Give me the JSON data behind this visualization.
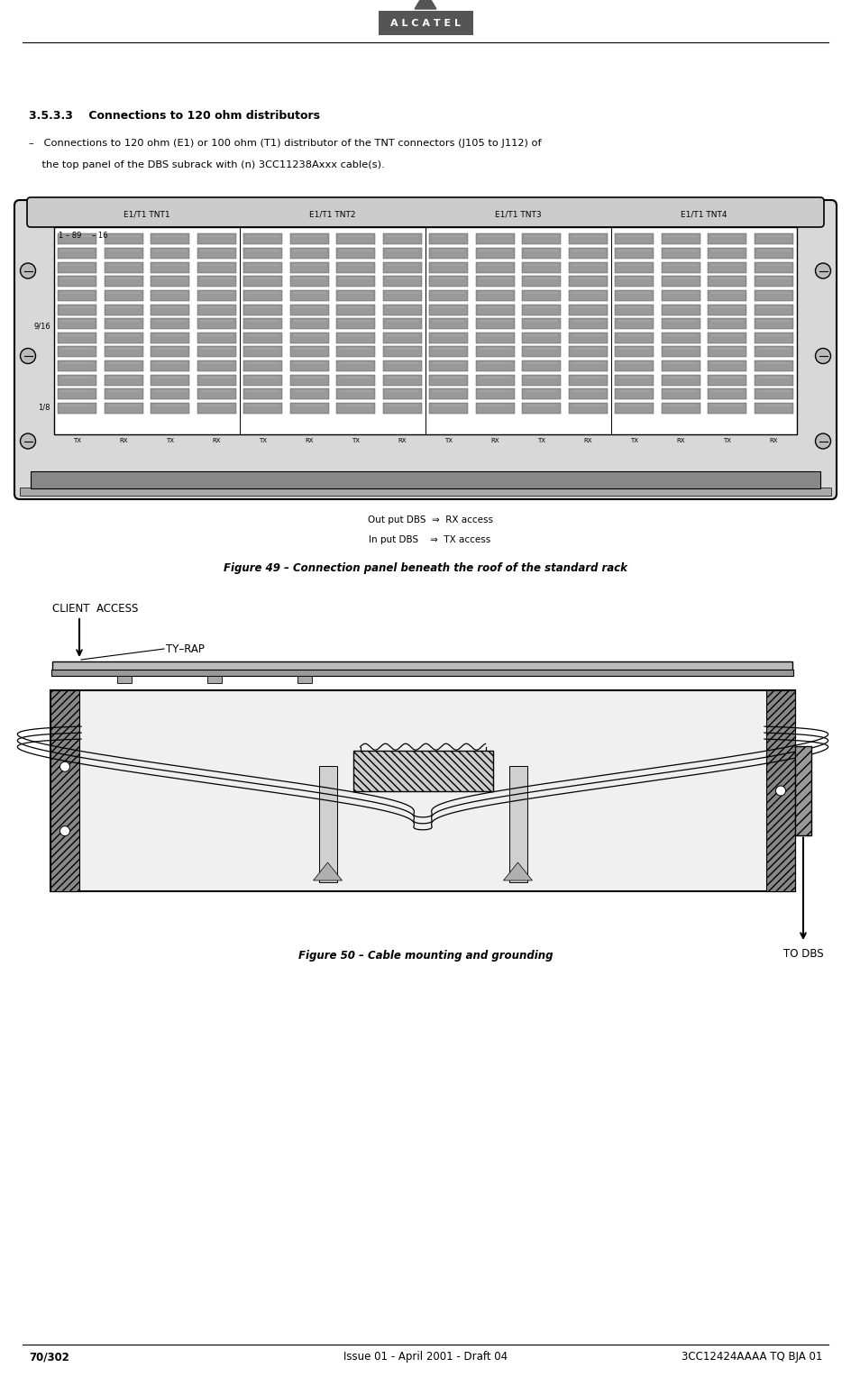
{
  "bg_color": "#ffffff",
  "page_width": 9.44,
  "page_height": 15.28,
  "header": {
    "triangle_color": "#555555",
    "alcatel_bg": "#555555",
    "alcatel_text": "A L C A T E L",
    "alcatel_text_color": "#ffffff"
  },
  "footer": {
    "left": "70/302",
    "center": "Issue 01 - April 2001 - Draft 04",
    "right": "3CC12424AAAA TQ BJA 01"
  },
  "section_title": "3.5.3.3    Connections to 120 ohm distributors",
  "bullet_text_line1": "–   Connections to 120 ohm (E1) or 100 ohm (T1) distributor of the TNT connectors (J105 to J112) of",
  "bullet_text_line2": "    the top panel of the DBS subrack with (n) 3CC11238Axxx cable(s).",
  "fig49_caption": "Figure 49 – Connection panel beneath the roof of the standard rack",
  "fig50_caption": "Figure 50 – Cable mounting and grounding",
  "tnt_labels": [
    "E1/T1 TNT1",
    "E1/T1 TNT2",
    "E1/T1 TNT3",
    "E1/T1 TNT4"
  ],
  "tx_rx_labels": [
    "TX",
    "RX",
    "TX",
    "RX",
    "TX",
    "RX",
    "TX",
    "RX",
    "TX",
    "RX",
    "TX",
    "RX",
    "TX",
    "RX",
    "TX",
    "RX"
  ],
  "output_dbs_text": "Out put DBS",
  "output_dbs_arrow": "⇒",
  "output_dbs_access": "RX access",
  "input_dbs_text": "In put DBS",
  "input_dbs_arrow": "⇒",
  "input_dbs_access": "TX access",
  "client_access": "CLIENT  ACCESS",
  "ty_rap": "TY–RAP",
  "to_dbs": "TO DBS",
  "row_labels_left": [
    "1 – 89",
    "9/16",
    "1/8"
  ],
  "row_labels_top": [
    "– 16"
  ]
}
